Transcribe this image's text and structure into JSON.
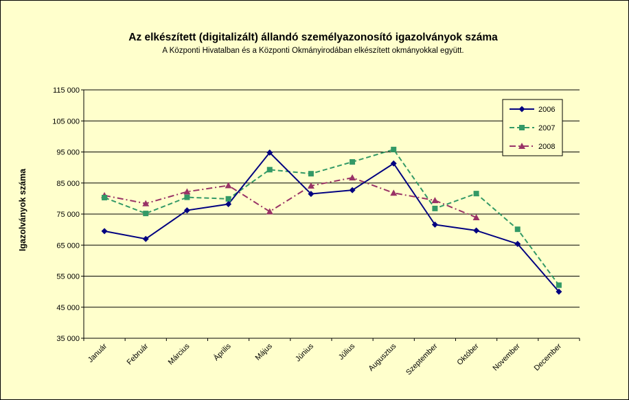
{
  "chart_data": {
    "type": "line",
    "title": "Az elkészített (digitalizált) állandó személyazonosító igazolványok száma",
    "subtitle": "A Központi Hivatalban és a Központi Okmányirodában elkészített okmányokkal együtt.",
    "xlabel": "",
    "ylabel": "Igazolványok száma",
    "ylim": [
      35000,
      115000
    ],
    "yticks": [
      35000,
      45000,
      55000,
      65000,
      75000,
      85000,
      95000,
      105000,
      115000
    ],
    "ytick_labels": [
      "35 000",
      "45 000",
      "55 000",
      "65 000",
      "75 000",
      "85 000",
      "95 000",
      "105 000",
      "115 000"
    ],
    "grid": true,
    "legend_position": "top-right",
    "categories": [
      "Január",
      "Február",
      "Március",
      "Április",
      "Május",
      "Június",
      "Július",
      "Augusztus",
      "Szeptember",
      "Október",
      "November",
      "December"
    ],
    "series": [
      {
        "name": "2006",
        "color": "#000080",
        "marker": "diamond",
        "dash": "solid",
        "values": [
          69500,
          67000,
          76200,
          78200,
          94800,
          81500,
          82700,
          91300,
          71600,
          69700,
          65400,
          50000
        ]
      },
      {
        "name": "2007",
        "color": "#339966",
        "marker": "square",
        "dash": "dashed",
        "values": [
          80300,
          75200,
          80400,
          79900,
          89300,
          88000,
          91800,
          95800,
          76800,
          81600,
          70100,
          52100
        ]
      },
      {
        "name": "2008",
        "color": "#993366",
        "marker": "triangle",
        "dash": "dashdot",
        "values": [
          81000,
          78400,
          82200,
          84200,
          75800,
          84100,
          86700,
          81800,
          79400,
          73900,
          null,
          null
        ]
      }
    ]
  }
}
